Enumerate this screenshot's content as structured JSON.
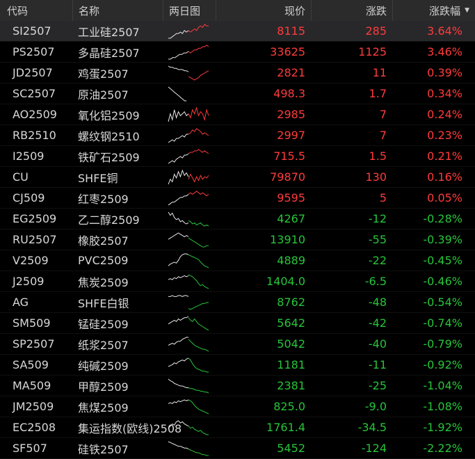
{
  "header": {
    "code": "代码",
    "name": "名称",
    "chart": "两日图",
    "price": "现价",
    "change": "涨跌",
    "pct": "涨跌幅",
    "sort_icon": "sort-descending-icon"
  },
  "colors": {
    "up": "#ff3b3b",
    "down": "#27c53a",
    "prev_day": "#e8e8e8"
  },
  "rows": [
    {
      "code": "SI2507",
      "name": "工业硅2507",
      "price": "8115",
      "change": "285",
      "pct": "3.64%",
      "dir": "up",
      "selected": true,
      "prev": [
        10,
        10,
        9,
        8,
        7,
        7,
        6,
        7,
        5,
        6,
        5
      ],
      "curr": [
        5,
        6,
        5,
        4,
        5,
        3,
        2,
        3,
        1,
        2,
        2
      ]
    },
    {
      "code": "PS2507",
      "name": "多晶硅2507",
      "price": "33625",
      "change": "1125",
      "pct": "3.46%",
      "dir": "up",
      "prev": [
        12,
        12,
        11,
        11,
        10,
        9,
        9,
        8,
        8,
        7
      ],
      "curr": [
        7,
        8,
        7,
        6,
        6,
        5,
        5,
        4,
        4,
        3,
        4
      ]
    },
    {
      "code": "JD2507",
      "name": "鸡蛋2507",
      "price": "2821",
      "change": "11",
      "pct": "0.39%",
      "dir": "up",
      "prev": [
        1,
        2,
        2,
        3,
        3,
        4,
        4,
        4,
        5,
        5,
        6
      ],
      "curr": [
        10,
        11,
        12,
        13,
        12,
        11,
        9,
        8,
        7,
        6,
        5
      ]
    },
    {
      "code": "SC2507",
      "name": "原油2507",
      "price": "498.3",
      "change": "1.7",
      "pct": "0.34%",
      "dir": "up",
      "prev": [
        2,
        4,
        6,
        8,
        10,
        12,
        14,
        16,
        18,
        20,
        20
      ],
      "curr": []
    },
    {
      "code": "AO2509",
      "name": "氧化铝2509",
      "price": "2985",
      "change": "7",
      "pct": "0.24%",
      "dir": "up",
      "prev": [
        10,
        6,
        9,
        4,
        8,
        5,
        7,
        6,
        5,
        7,
        6
      ],
      "curr": [
        6,
        8,
        4,
        6,
        3,
        7,
        5,
        6,
        9,
        4,
        7
      ]
    },
    {
      "code": "RB2510",
      "name": "螺纹钢2510",
      "price": "2997",
      "change": "7",
      "pct": "0.23%",
      "dir": "up",
      "prev": [
        12,
        11,
        10,
        11,
        9,
        9,
        8,
        7,
        8,
        6,
        6
      ],
      "curr": [
        6,
        5,
        3,
        4,
        2,
        3,
        4,
        6,
        5,
        6,
        7
      ]
    },
    {
      "code": "I2509",
      "name": "铁矿石2509",
      "price": "715.5",
      "change": "1.5",
      "pct": "0.21%",
      "dir": "up",
      "prev": [
        12,
        11,
        10,
        11,
        9,
        8,
        7,
        8,
        6,
        6,
        5
      ],
      "curr": [
        5,
        4,
        4,
        3,
        3,
        2,
        3,
        4,
        3,
        4,
        5
      ]
    },
    {
      "code": "CU",
      "name": "SHFE铜",
      "price": "79870",
      "change": "130",
      "pct": "0.16%",
      "dir": "up",
      "prev": [
        14,
        10,
        12,
        6,
        9,
        4,
        8,
        3,
        7,
        5,
        8
      ],
      "curr": [
        10,
        6,
        9,
        12,
        8,
        11,
        7,
        10,
        8,
        9,
        7
      ]
    },
    {
      "code": "CJ509",
      "name": "红枣2509",
      "price": "9595",
      "change": "5",
      "pct": "0.05%",
      "dir": "up",
      "prev": [
        12,
        11,
        10,
        10,
        9,
        8,
        7,
        7,
        6,
        6,
        5
      ],
      "curr": [
        5,
        4,
        5,
        4,
        3,
        4,
        5,
        4,
        5,
        6,
        5
      ]
    },
    {
      "code": "EG2509",
      "name": "乙二醇2509",
      "price": "4267",
      "change": "-12",
      "pct": "-0.28%",
      "dir": "down",
      "prev": [
        3,
        6,
        4,
        8,
        10,
        9,
        12,
        11,
        13,
        14,
        13
      ],
      "curr": [
        11,
        12,
        14,
        13,
        15,
        14,
        13,
        15,
        16,
        15,
        16
      ]
    },
    {
      "code": "RU2507",
      "name": "橡胶2507",
      "price": "13910",
      "change": "-55",
      "pct": "-0.39%",
      "dir": "down",
      "prev": [
        9,
        8,
        7,
        6,
        5,
        4,
        5,
        6,
        7,
        6,
        7
      ],
      "curr": [
        8,
        9,
        10,
        11,
        12,
        13,
        14,
        15,
        15,
        14,
        14
      ]
    },
    {
      "code": "V2509",
      "name": "PVC2509",
      "price": "4889",
      "change": "-22",
      "pct": "-0.45%",
      "dir": "down",
      "prev": [
        16,
        14,
        13,
        12,
        13,
        10,
        6,
        4,
        3,
        3,
        4
      ],
      "curr": [
        4,
        5,
        6,
        7,
        8,
        9,
        12,
        14,
        16,
        17,
        18
      ]
    },
    {
      "code": "J2509",
      "name": "焦炭2509",
      "price": "1404.0",
      "change": "-6.5",
      "pct": "-0.46%",
      "dir": "down",
      "prev": [
        8,
        7,
        8,
        6,
        7,
        5,
        6,
        5,
        4,
        5,
        4
      ],
      "curr": [
        3,
        4,
        5,
        7,
        9,
        12,
        14,
        13,
        15,
        16,
        17
      ]
    },
    {
      "code": "AG",
      "name": "SHFE白银",
      "price": "8762",
      "change": "-48",
      "pct": "-0.54%",
      "dir": "down",
      "prev": [
        4,
        4,
        3,
        4,
        4,
        3,
        3,
        4,
        3,
        3,
        4
      ],
      "curr": [
        16,
        17,
        16,
        15,
        14,
        13,
        12,
        11,
        11,
        10,
        10
      ]
    },
    {
      "code": "SM509",
      "name": "锰硅2509",
      "price": "5642",
      "change": "-42",
      "pct": "-0.74%",
      "dir": "down",
      "prev": [
        8,
        7,
        6,
        5,
        6,
        4,
        5,
        4,
        3,
        3,
        2
      ],
      "curr": [
        3,
        5,
        6,
        4,
        6,
        8,
        9,
        10,
        11,
        12,
        13
      ]
    },
    {
      "code": "SP2507",
      "name": "纸浆2507",
      "price": "5042",
      "change": "-40",
      "pct": "-0.79%",
      "dir": "down",
      "prev": [
        12,
        11,
        10,
        11,
        9,
        8,
        8,
        6,
        5,
        4,
        4
      ],
      "curr": [
        6,
        8,
        10,
        12,
        13,
        14,
        15,
        16,
        16,
        17,
        18
      ]
    },
    {
      "code": "SA509",
      "name": "纯碱2509",
      "price": "1181",
      "change": "-11",
      "pct": "-0.92%",
      "dir": "down",
      "prev": [
        12,
        11,
        10,
        8,
        9,
        7,
        6,
        5,
        6,
        4,
        3
      ],
      "curr": [
        3,
        5,
        9,
        12,
        14,
        15,
        16,
        17,
        17,
        18,
        18
      ]
    },
    {
      "code": "MA509",
      "name": "甲醇2509",
      "price": "2381",
      "change": "-25",
      "pct": "-1.04%",
      "dir": "down",
      "prev": [
        2,
        4,
        5,
        7,
        8,
        9,
        10,
        10,
        11,
        12,
        12
      ],
      "curr": [
        12,
        13,
        13,
        14,
        15,
        15,
        16,
        16,
        17,
        17,
        18
      ]
    },
    {
      "code": "JM2509",
      "name": "焦煤2509",
      "price": "825.0",
      "change": "-9.0",
      "pct": "-1.08%",
      "dir": "down",
      "prev": [
        7,
        6,
        7,
        5,
        6,
        4,
        5,
        4,
        3,
        4,
        3
      ],
      "curr": [
        3,
        4,
        6,
        9,
        11,
        13,
        14,
        15,
        16,
        17,
        18
      ]
    },
    {
      "code": "EC2508",
      "name": "集运指数(欧线)2508",
      "price": "1761.4",
      "change": "-34.5",
      "pct": "-1.92%",
      "dir": "down",
      "prev": [
        12,
        10,
        8,
        9,
        6,
        5,
        7,
        6,
        8,
        9,
        10
      ],
      "curr": [
        10,
        12,
        11,
        13,
        14,
        15,
        14,
        16,
        17,
        18,
        18
      ]
    },
    {
      "code": "SF507",
      "name": "硅铁2507",
      "price": "5452",
      "change": "-124",
      "pct": "-2.22%",
      "dir": "down",
      "prev": [
        3,
        4,
        5,
        6,
        7,
        8,
        8,
        9,
        10,
        10,
        11
      ],
      "curr": [
        11,
        12,
        13,
        14,
        15,
        15,
        16,
        17,
        17,
        18,
        18
      ]
    }
  ]
}
